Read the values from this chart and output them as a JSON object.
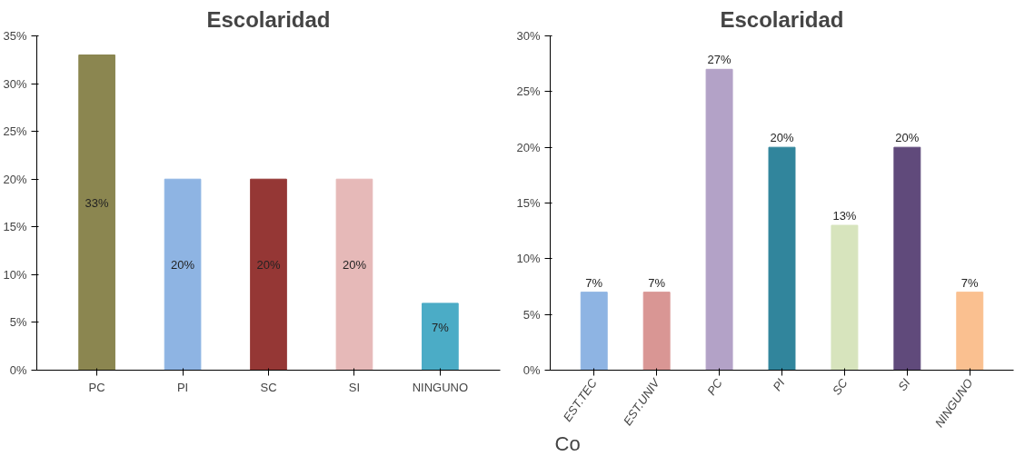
{
  "chart_data": [
    {
      "type": "bar",
      "title": "Escolaridad",
      "categories": [
        "PC",
        "PI",
        "SC",
        "SI",
        "NINGUNO"
      ],
      "values": [
        33,
        20,
        20,
        20,
        7
      ],
      "colors": [
        "#8b8650",
        "#8eb4e3",
        "#953735",
        "#e6b9b8",
        "#4bacc6"
      ],
      "value_labels": [
        "33%",
        "20%",
        "20%",
        "20%",
        "7%"
      ],
      "ylim": [
        0,
        35
      ],
      "yticks": [
        {
          "value": 0,
          "label": "0%"
        },
        {
          "value": 5,
          "label": "5%"
        },
        {
          "value": 10,
          "label": "10%"
        },
        {
          "value": 15,
          "label": "15%"
        },
        {
          "value": 20,
          "label": "20%"
        },
        {
          "value": 25,
          "label": "25%"
        },
        {
          "value": 30,
          "label": "30%"
        },
        {
          "value": 35,
          "label": "35%"
        }
      ],
      "grid": false
    },
    {
      "type": "bar",
      "title": "Escolaridad",
      "categories": [
        "EST.TEC",
        "EST.UNIV",
        "PC",
        "PI",
        "SC",
        "SI",
        "NINGUNO"
      ],
      "values": [
        7,
        7,
        27,
        20,
        13,
        20,
        7
      ],
      "colors": [
        "#8eb4e3",
        "#d99694",
        "#b3a2c7",
        "#31859c",
        "#d7e4bd",
        "#604a7b",
        "#fac090"
      ],
      "value_labels": [
        "7%",
        "7%",
        "27%",
        "20%",
        "13%",
        "20%",
        "7%"
      ],
      "ylim": [
        0,
        30
      ],
      "yticks": [
        {
          "value": 0,
          "label": "0%"
        },
        {
          "value": 5,
          "label": "5%"
        },
        {
          "value": 10,
          "label": "10%"
        },
        {
          "value": 15,
          "label": "15%"
        },
        {
          "value": 20,
          "label": "20%"
        },
        {
          "value": 25,
          "label": "25%"
        },
        {
          "value": 30,
          "label": "30%"
        }
      ],
      "grid": false,
      "annotations": [
        "Co"
      ]
    }
  ]
}
